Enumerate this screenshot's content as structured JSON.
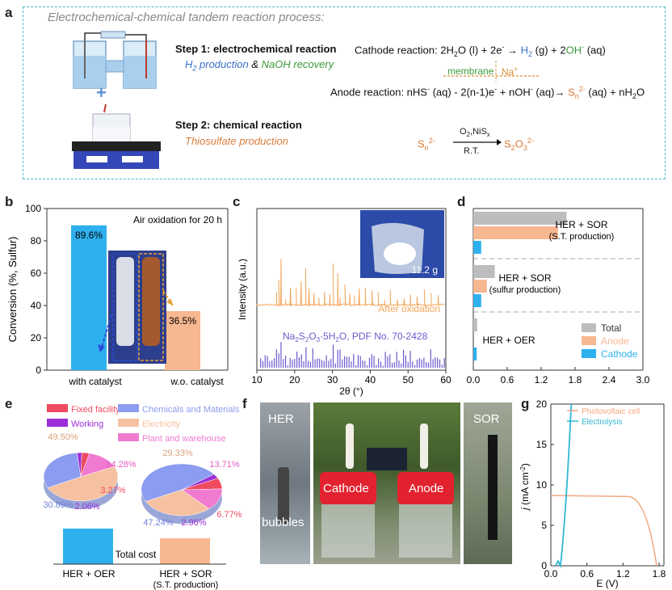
{
  "panel_labels": {
    "a": "a",
    "b": "b",
    "c": "c",
    "d": "d",
    "e": "e",
    "f": "f",
    "g": "g"
  },
  "panel_a": {
    "title": "Electrochemical-chemical tandem reaction process:",
    "plus": "+",
    "step1": {
      "title": "Step 1: electrochemical reaction",
      "sub_h2": "H",
      "sub_h2_sub": "2",
      "sub_h2_rest": " production",
      "amp": " & ",
      "sub_naoh": "NaOH recovery"
    },
    "step2": {
      "title": "Step 2: chemical reaction",
      "sub": "Thiosulfate production"
    },
    "cathode_eq": {
      "prefix": "Cathode reaction: 2H",
      "sub2": "2",
      "mid": "O (l) + 2e",
      "sup_minus": "-",
      "arrow": " → ",
      "h2": "H",
      "h2sub": "2",
      "gas": " (g) + 2",
      "oh": "OH",
      "oh_sup": "-",
      "aq": " (aq)"
    },
    "membrane": "membrane",
    "na": "Na",
    "na_sup": "+",
    "anode_eq": {
      "prefix": "Anode reaction: nHS",
      "sup1": "-",
      "p2": " (aq) - 2(n-1)e",
      "sup2": "-",
      "p3": " + nOH",
      "sup3": "-",
      "p4": " (aq)→ ",
      "sn": "S",
      "sn_sub": "n",
      "sn_sup": "2-",
      "p5": " (aq) + nH",
      "h2o_sub": "2",
      "p6": "O"
    },
    "chem_eq": {
      "sn": "S",
      "sn_sub": "n",
      "sn_sup": "2-",
      "above": "O",
      "above_sub": "2",
      "above_rest": ",NiS",
      "above_sub2": "x",
      "below": "R.T.",
      "prod": "S",
      "prod_sub1": "2",
      "prod_mid": "O",
      "prod_sub2": "3",
      "prod_sup": "2-"
    }
  },
  "panel_b": {
    "ylabel": "Conversion (%, Sulfur)",
    "annotation": "Air oxidation for 20 h",
    "yticks": [
      "0",
      "20",
      "40",
      "60",
      "80",
      "100"
    ],
    "chart_data": {
      "type": "bar",
      "categories": [
        "with catalyst",
        "w.o. catalyst"
      ],
      "values": [
        89.6,
        36.5
      ],
      "value_labels": [
        "89.6%",
        "36.5%"
      ],
      "ylim": [
        0,
        100
      ],
      "colors": [
        "#2fb0ee",
        "#f6b791"
      ]
    }
  },
  "panel_c": {
    "xlabel": "2θ (°)",
    "ylabel": "Intensity (a.u.)",
    "after_label": "After oxidation",
    "mass_label": "11.2 g",
    "pdf_label": {
      "p1": "Na",
      "s1": "2",
      "p2": "S",
      "s2": "2",
      "p3": "O",
      "s3": "3",
      "p4": "·5H",
      "s4": "2",
      "p5": "O, PDF No. 70-2428"
    },
    "xticks": [
      "10",
      "20",
      "30",
      "40",
      "50",
      "60"
    ],
    "xlim": [
      10,
      60
    ],
    "colors": {
      "after": "#f2a65a",
      "pdf": "#6a5acd"
    }
  },
  "panel_d": {
    "xticks": [
      "0.0",
      "0.6",
      "1.2",
      "1.8",
      "2.4",
      "3.0"
    ],
    "xlim": [
      0,
      3.0
    ],
    "groups": [
      {
        "label1": "HER + SOR",
        "label2": "(S.T. production)",
        "total": 1.65,
        "anode": 1.5,
        "cathode": 0.14
      },
      {
        "label1": "HER + SOR",
        "label2": "(sulfur production)",
        "total": 0.38,
        "anode": 0.24,
        "cathode": 0.14
      },
      {
        "label1": "HER + OER",
        "label2": "",
        "total": 0.07,
        "anode": 0.0,
        "cathode": 0.06
      }
    ],
    "legend": [
      "Total",
      "Anode",
      "Cathode"
    ],
    "colors": {
      "total": "#bdbdbd",
      "anode": "#f6b791",
      "cathode": "#2fb0ee"
    }
  },
  "panel_e": {
    "legend": [
      {
        "label": "Fixed facility",
        "color": "#ef4a5f"
      },
      {
        "label": "Working",
        "color": "#9b2fd6"
      },
      {
        "label": "Chemicals and Materials",
        "color": "#8c9cf0"
      },
      {
        "label": "Electricity",
        "color": "#f6c1a0"
      },
      {
        "label": "Plant and warehouse",
        "color": "#f07ad0"
      }
    ],
    "pie1": {
      "labels": [
        "49.50%",
        "14.28%",
        "3.27%",
        "2.06%",
        "30.89%"
      ]
    },
    "pie2": {
      "labels": [
        "29.33%",
        "13.71%",
        "6.77%",
        "2.96%",
        "47.24%"
      ]
    },
    "total_cost": "Total cost",
    "bar1_label": "HER + OER",
    "bar2_label1": "HER + SOR",
    "bar2_label2": "(S.T. production)",
    "chart_data": {
      "type": "pie",
      "pies": [
        {
          "name": "HER + OER",
          "values": [
            30.89,
            2.06,
            3.27,
            14.28,
            49.5
          ]
        },
        {
          "name": "HER + SOR (S.T. production)",
          "values": [
            47.24,
            2.96,
            6.77,
            13.71,
            29.33
          ]
        }
      ]
    }
  },
  "panel_f": {
    "her": "HER",
    "bubbles": "bubbles",
    "cathode": "Cathode",
    "anode": "Anode",
    "sor": "SOR"
  },
  "panel_g": {
    "ylabel_j": "j",
    "ylabel_rest": " (mA cm",
    "ylabel_sup": "-2",
    "ylabel_end": ")",
    "xlabel": "E (V)",
    "yticks": [
      "0",
      "5",
      "10",
      "15",
      "20"
    ],
    "xticks": [
      "0.0",
      "0.6",
      "1.2",
      "1.8"
    ],
    "legend": [
      "Photovoltaic cell",
      "Electrolysis"
    ],
    "colors": {
      "pv": "#f2a882",
      "el": "#2fb7d4"
    }
  }
}
